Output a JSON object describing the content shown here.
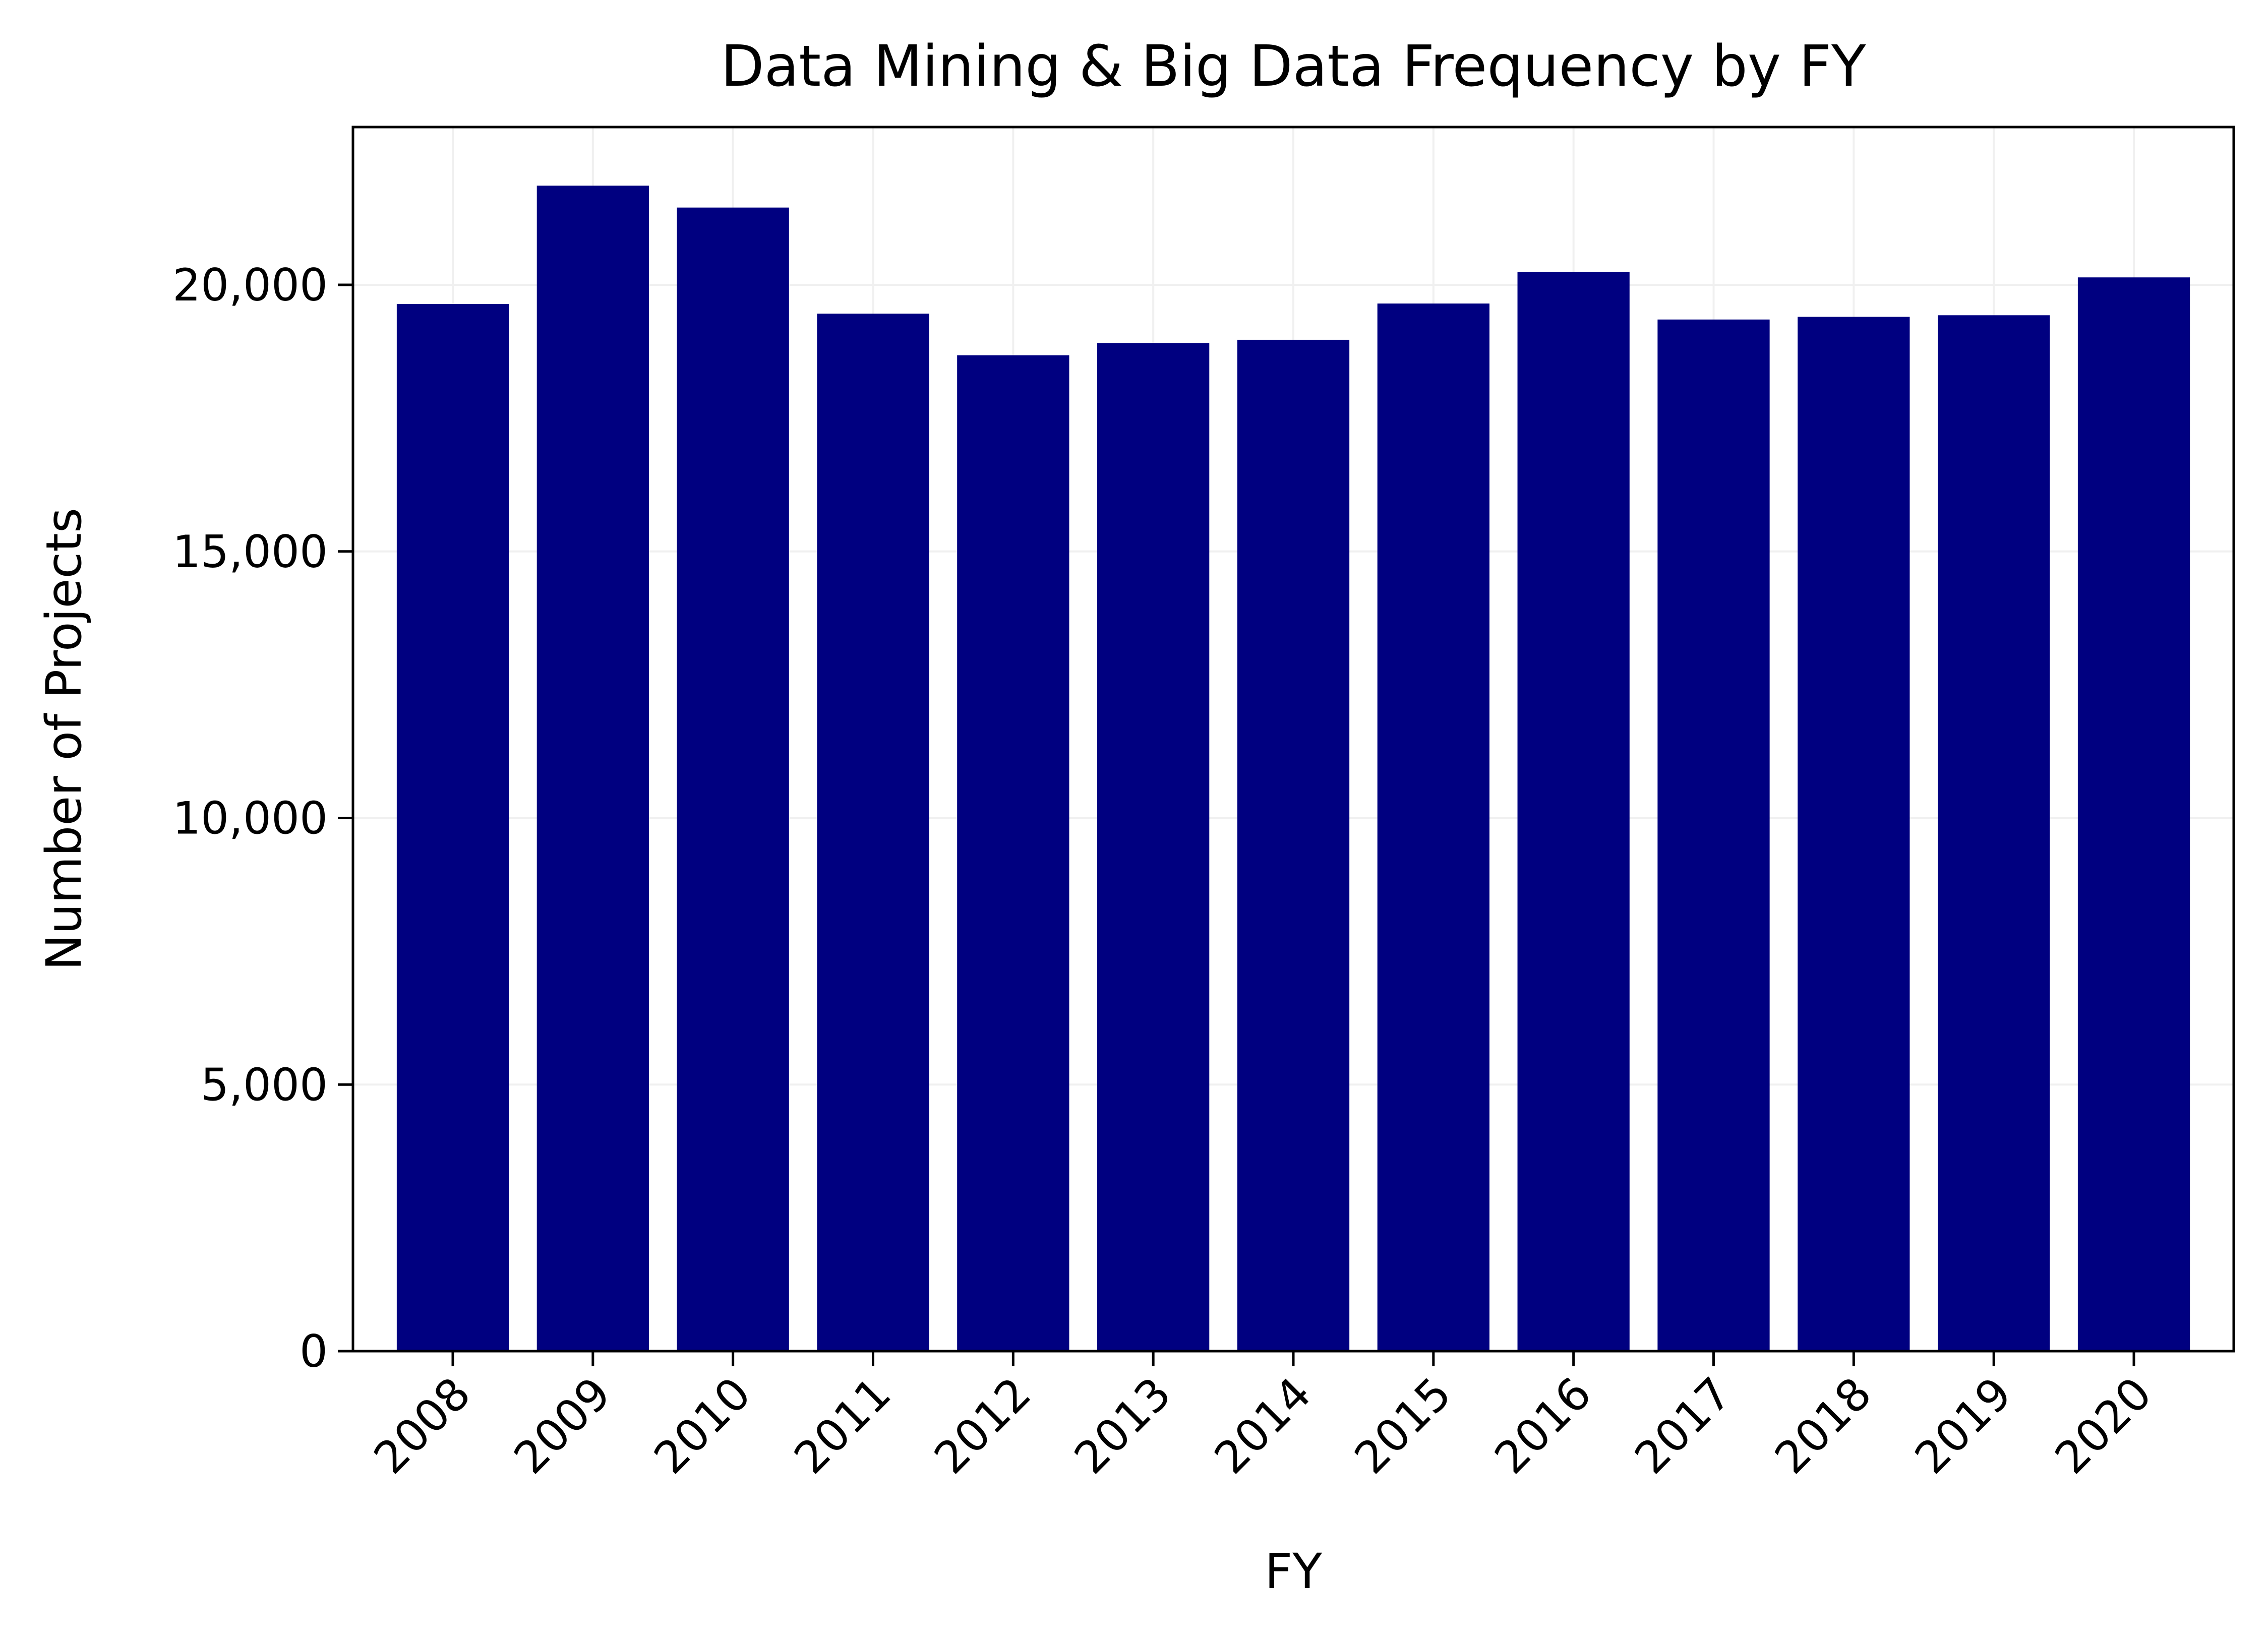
{
  "chart_data": {
    "type": "bar",
    "title": "Data Mining & Big Data Frequency by FY",
    "xlabel": "FY",
    "ylabel": "Number of Projects",
    "categories": [
      "2008",
      "2009",
      "2010",
      "2011",
      "2012",
      "2013",
      "2014",
      "2015",
      "2016",
      "2017",
      "2018",
      "2019",
      "2020"
    ],
    "values": [
      19640,
      21860,
      21450,
      19460,
      18680,
      18910,
      18970,
      19650,
      20240,
      19350,
      19400,
      19430,
      20140
    ],
    "ylim": [
      0,
      22960
    ],
    "yticks": [
      0,
      5000,
      10000,
      15000,
      20000
    ],
    "ytick_labels": [
      "0",
      "5,000",
      "10,000",
      "15,000",
      "20,000"
    ],
    "grid": true,
    "bar_color": "#000080",
    "grid_color": "#f0f0f0"
  }
}
